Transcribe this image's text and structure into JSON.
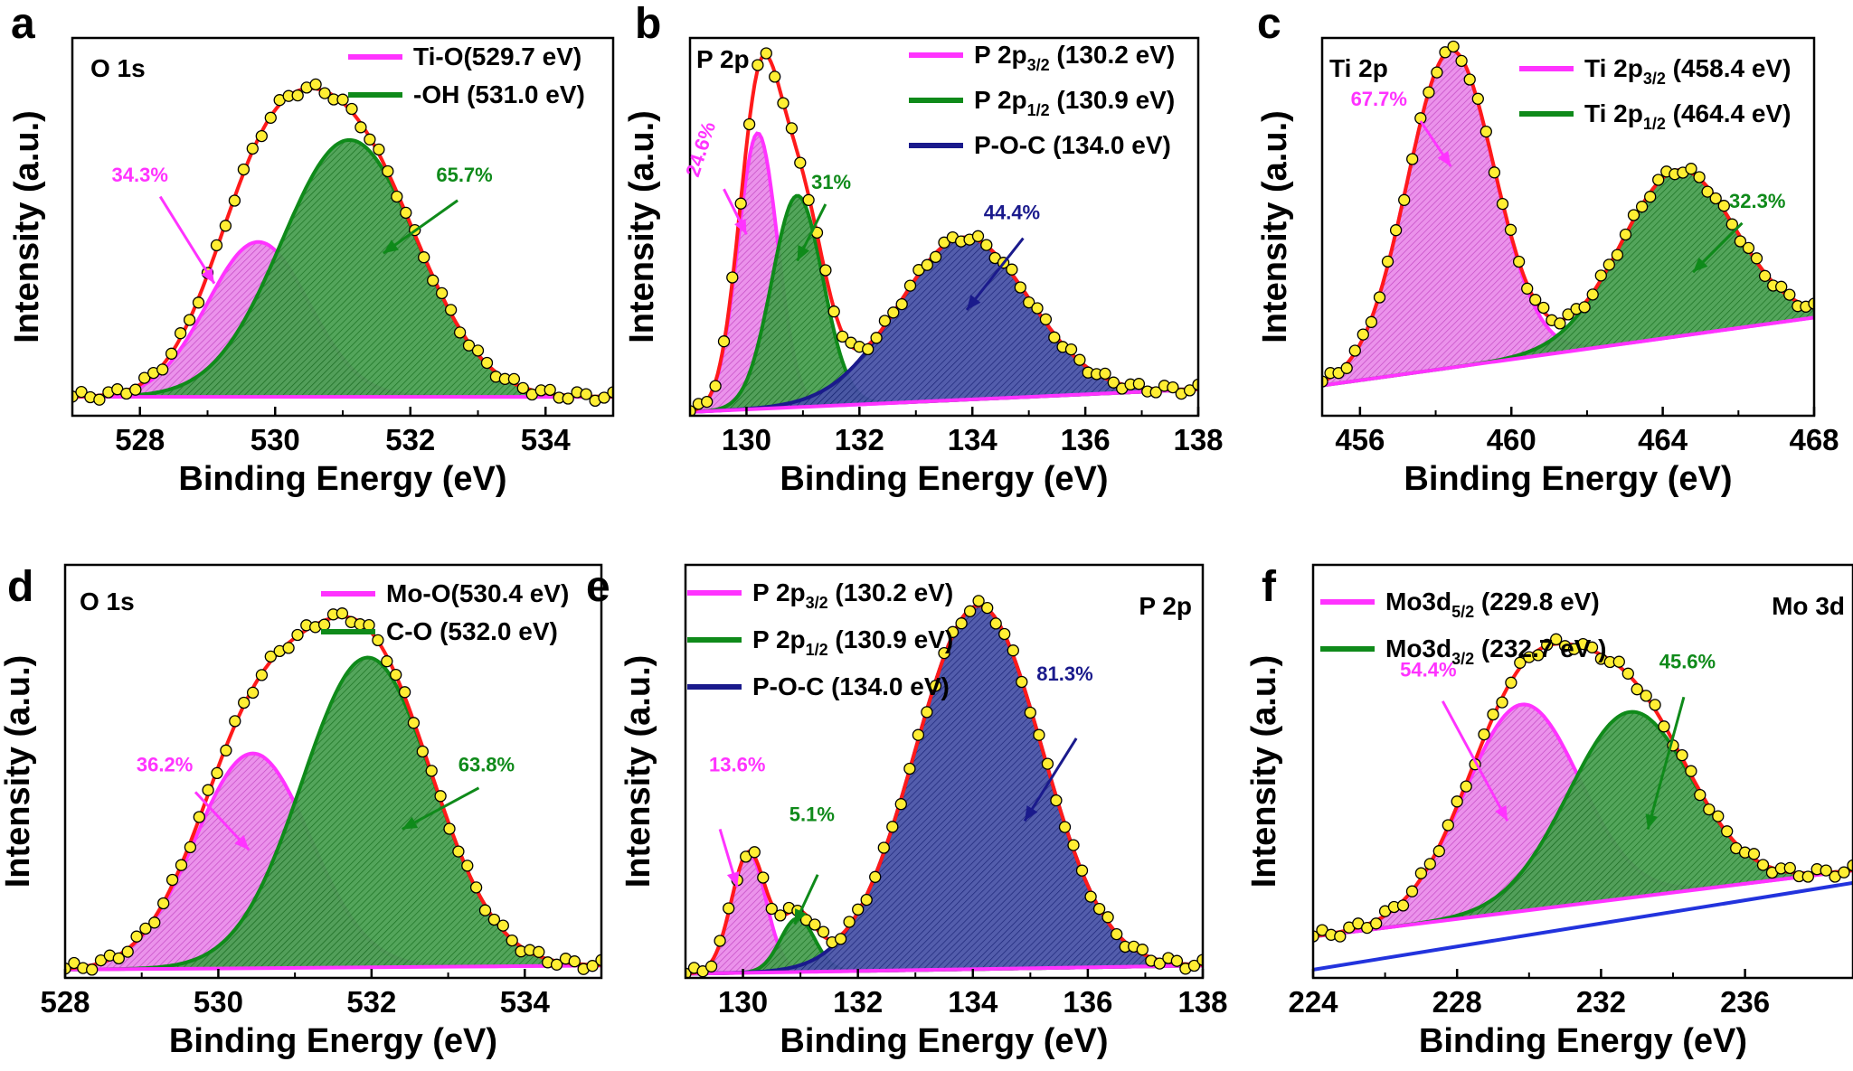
{
  "colors": {
    "magenta": "#ff33ff",
    "green": "#0f8a1a",
    "navy": "#1a1a8c",
    "fit": "#ff1a1a",
    "point": "#ffee33",
    "blue": "#2233dd",
    "axis": "#000000"
  },
  "chart_data": [
    {
      "type": "line",
      "id": "a",
      "panel_label": "a",
      "core_level": "O 1s",
      "title": "O 1s",
      "xlabel": "Binding Energy (eV)",
      "ylabel": "Intensity (a.u.)",
      "xlim": [
        527,
        535
      ],
      "ylim": [
        0,
        100
      ],
      "xticks": [
        528,
        530,
        532,
        534
      ],
      "tick_labels": [
        "528",
        "530",
        "532",
        "534"
      ],
      "baseline": [
        [
          527,
          5
        ],
        [
          535,
          5
        ]
      ],
      "components": [
        {
          "name": "Ti-O",
          "label": "Ti-O(529.7 eV)",
          "center": 529.75,
          "height": 41,
          "width": 0.75,
          "color": "magenta",
          "percent": "34.3%"
        },
        {
          "name": "-OH",
          "label": "-OH  (531.0 eV)",
          "center": 531.1,
          "height": 68,
          "width": 1.0,
          "color": "green",
          "percent": "65.7%"
        }
      ],
      "annotations": [
        {
          "text": "34.3%",
          "color": "magenta",
          "tx": 528.0,
          "ty": 62,
          "ax1": 528.3,
          "ay1": 58,
          "ax2": 529.1,
          "ay2": 35
        },
        {
          "text": "65.7%",
          "color": "green",
          "tx": 532.8,
          "ty": 62,
          "ax1": 532.7,
          "ay1": 57,
          "ax2": 531.6,
          "ay2": 43
        }
      ]
    },
    {
      "type": "line",
      "id": "b",
      "panel_label": "b",
      "core_level": "P 2p",
      "title": "P 2p",
      "xlabel": "Binding Energy (eV)",
      "ylabel": "Intensity (a.u.)",
      "xlim": [
        129,
        138
      ],
      "ylim": [
        0,
        100
      ],
      "xticks": [
        130,
        132,
        134,
        136,
        138
      ],
      "tick_labels": [
        "130",
        "132",
        "134",
        "136",
        "138"
      ],
      "baseline": [
        [
          129,
          1
        ],
        [
          138,
          7
        ]
      ],
      "components": [
        {
          "name": "P 2p3/2",
          "label": "P 2p3/2 (130.2 eV)",
          "label_main": "P 2p",
          "label_sub": "3/2",
          "label_tail": " (130.2 eV)",
          "center": 130.2,
          "height": 73,
          "width": 0.35,
          "color": "magenta",
          "percent": "24.6%"
        },
        {
          "name": "P 2p1/2",
          "label": "P 2p1/2 (130.9 eV)",
          "label_main": "P 2p",
          "label_sub": "1/2",
          "label_tail": "  (130.9 eV)",
          "center": 130.9,
          "height": 56,
          "width": 0.45,
          "color": "green",
          "percent": "31%"
        },
        {
          "name": "P-O-C",
          "label": "P-O-C (134.0 eV)",
          "center": 133.85,
          "height": 43,
          "width": 1.15,
          "color": "navy",
          "percent": "44.4%"
        }
      ],
      "annotations": [
        {
          "text": "24.6%",
          "color": "magenta",
          "tx": 129.3,
          "ty": 70,
          "rotate": -72,
          "ax1": 129.6,
          "ay1": 60,
          "ax2": 130.0,
          "ay2": 48
        },
        {
          "text": "31%",
          "color": "green",
          "tx": 131.5,
          "ty": 60,
          "ax1": 131.4,
          "ay1": 56,
          "ax2": 130.9,
          "ay2": 41
        },
        {
          "text": "44.4%",
          "color": "navy",
          "tx": 134.7,
          "ty": 52,
          "ax1": 134.9,
          "ay1": 47,
          "ax2": 133.9,
          "ay2": 28
        }
      ]
    },
    {
      "type": "line",
      "id": "c",
      "panel_label": "c",
      "core_level": "Ti 2p",
      "title": "Ti 2p",
      "xlabel": "Binding Energy (eV)",
      "ylabel": "Intensity (a.u.)",
      "xlim": [
        455,
        468
      ],
      "ylim": [
        0,
        100
      ],
      "xticks": [
        456,
        460,
        464,
        468
      ],
      "tick_labels": [
        "456",
        "460",
        "464",
        "468"
      ],
      "baseline": [
        [
          455,
          8
        ],
        [
          468,
          26
        ]
      ],
      "components": [
        {
          "name": "Ti 2p3/2",
          "label": "Ti 2p3/2 (458.4 eV)",
          "label_main": "Ti 2p",
          "label_sub": "3/2",
          "label_tail": " (458.4 eV)",
          "center": 458.4,
          "height": 84,
          "width": 1.15,
          "color": "magenta",
          "percent": "67.7%"
        },
        {
          "name": "Ti 2p1/2",
          "label": "Ti 2p1/2 (464.4 eV)",
          "label_main": "Ti 2p",
          "label_sub": "1/2",
          "label_tail": " (464.4 eV)",
          "center": 464.4,
          "height": 44,
          "width": 1.5,
          "color": "green",
          "percent": "32.3%"
        }
      ],
      "annotations": [
        {
          "text": "67.7%",
          "color": "magenta",
          "tx": 456.5,
          "ty": 82,
          "ax1": 457.6,
          "ay1": 78,
          "ax2": 458.4,
          "ay2": 66
        },
        {
          "text": "32.3%",
          "color": "green",
          "tx": 466.5,
          "ty": 55,
          "ax1": 466.1,
          "ay1": 51,
          "ax2": 464.8,
          "ay2": 38
        }
      ]
    },
    {
      "type": "line",
      "id": "d",
      "panel_label": "d",
      "core_level": "O 1s",
      "title": "O 1s",
      "xlabel": "Binding Energy (eV)",
      "ylabel": "Intensity (a.u.)",
      "xlim": [
        528,
        535
      ],
      "ylim": [
        0,
        100
      ],
      "xticks": [
        528,
        530,
        532,
        534
      ],
      "tick_labels": [
        "528",
        "530",
        "532",
        "534"
      ],
      "baseline": [
        [
          528,
          2
        ],
        [
          535,
          3
        ]
      ],
      "components": [
        {
          "name": "Mo-O",
          "label": "Mo-O(530.4 eV)",
          "center": 530.45,
          "height": 52,
          "width": 0.75,
          "color": "magenta",
          "percent": "36.2%"
        },
        {
          "name": "C-O",
          "label": "C-O  (532.0 eV)",
          "center": 531.95,
          "height": 75,
          "width": 0.85,
          "color": "green",
          "percent": "63.8%"
        }
      ],
      "annotations": [
        {
          "text": "36.2%",
          "color": "magenta",
          "tx": 529.3,
          "ty": 50,
          "ax1": 529.7,
          "ay1": 45,
          "ax2": 530.4,
          "ay2": 31
        },
        {
          "text": "63.8%",
          "color": "green",
          "tx": 533.5,
          "ty": 50,
          "ax1": 533.4,
          "ay1": 46,
          "ax2": 532.4,
          "ay2": 36
        }
      ]
    },
    {
      "type": "line",
      "id": "e",
      "panel_label": "e",
      "core_level": "P 2p",
      "title": "P 2p",
      "xlabel": "Binding Energy (eV)",
      "ylabel": "Intensity (a.u.)",
      "xlim": [
        129,
        138
      ],
      "ylim": [
        0,
        100
      ],
      "xticks": [
        130,
        132,
        134,
        136,
        138
      ],
      "tick_labels": [
        "130",
        "132",
        "134",
        "136",
        "138"
      ],
      "baseline": [
        [
          129,
          1
        ],
        [
          138,
          3
        ]
      ],
      "components": [
        {
          "name": "P 2p3/2",
          "label": "P 2p3/2 (130.2 eV)",
          "label_main": "P 2p",
          "label_sub": "3/2",
          "label_tail": " (130.2 eV)",
          "center": 130.1,
          "height": 29,
          "width": 0.3,
          "color": "magenta",
          "percent": "13.6%"
        },
        {
          "name": "P 2p1/2",
          "label": "P 2p1/2 (130.9 eV)",
          "label_main": "P 2p",
          "label_sub": "1/2",
          "label_tail": "  (130.9 eV)",
          "center": 130.95,
          "height": 13,
          "width": 0.3,
          "color": "green",
          "percent": "5.1%"
        },
        {
          "name": "P-O-C",
          "label": "P-O-C (134.0 eV)",
          "center": 134.1,
          "height": 88,
          "width": 1.1,
          "color": "navy",
          "percent": "81.3%"
        }
      ],
      "annotations": [
        {
          "text": "13.6%",
          "color": "magenta",
          "tx": 129.9,
          "ty": 50,
          "ax1": 129.6,
          "ay1": 36,
          "ax2": 129.9,
          "ay2": 22
        },
        {
          "text": "5.1%",
          "color": "green",
          "tx": 131.2,
          "ty": 38,
          "ax1": 131.3,
          "ay1": 25,
          "ax2": 130.9,
          "ay2": 13
        },
        {
          "text": "81.3%",
          "color": "navy",
          "tx": 135.6,
          "ty": 72,
          "ax1": 135.8,
          "ay1": 58,
          "ax2": 134.9,
          "ay2": 38
        }
      ]
    },
    {
      "type": "line",
      "id": "f",
      "panel_label": "f",
      "core_level": "Mo 3d",
      "title": "Mo 3d",
      "xlabel": "Binding Energy (eV)",
      "ylabel": "Intensity (a.u.)",
      "xlim": [
        224,
        239
      ],
      "ylim": [
        0,
        100
      ],
      "xticks": [
        224,
        228,
        232,
        236
      ],
      "tick_labels": [
        "224",
        "228",
        "232",
        "236"
      ],
      "baseline": [
        [
          224,
          10
        ],
        [
          239,
          26
        ]
      ],
      "extra_baseline": [
        [
          224,
          2
        ],
        [
          239,
          23
        ]
      ],
      "components": [
        {
          "name": "Mo3d5/2",
          "label": "Mo3d5/2 (229.8 eV)",
          "label_main": "Mo3d",
          "label_sub": "5/2",
          "label_tail": " (229.8 eV)",
          "center": 229.8,
          "height": 50,
          "width": 1.6,
          "color": "magenta",
          "percent": "54.4%"
        },
        {
          "name": "Mo3d3/2",
          "label": "Mo3d3/2 (232.7 eV)",
          "label_main": "Mo3d",
          "label_sub": "3/2",
          "label_tail": " (232.7 eV )",
          "center": 232.8,
          "height": 45,
          "width": 1.7,
          "color": "green",
          "percent": "45.6%"
        }
      ],
      "annotations": [
        {
          "text": "54.4%",
          "color": "magenta",
          "tx": 227.2,
          "ty": 73,
          "ax1": 227.6,
          "ay1": 67,
          "ax2": 229.4,
          "ay2": 38
        },
        {
          "text": "45.6%",
          "color": "green",
          "tx": 234.4,
          "ty": 75,
          "ax1": 234.3,
          "ay1": 68,
          "ax2": 233.3,
          "ay2": 36
        }
      ]
    }
  ]
}
